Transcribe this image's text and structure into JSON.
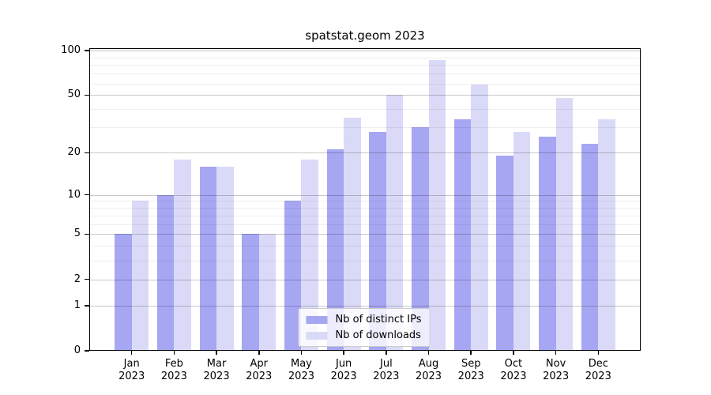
{
  "title": "spatstat.geom 2023",
  "chart_data": {
    "type": "bar",
    "title": "spatstat.geom 2023",
    "x_categories": [
      "Jan",
      "Feb",
      "Mar",
      "Apr",
      "May",
      "Jun",
      "Jul",
      "Aug",
      "Sep",
      "Oct",
      "Nov",
      "Dec"
    ],
    "x_year": "2023",
    "series": [
      {
        "name": "Nb of distinct IPs",
        "color": "#a6a6f3",
        "values": [
          5,
          10,
          16,
          5,
          9,
          21,
          28,
          30,
          34,
          19,
          26,
          23
        ]
      },
      {
        "name": "Nb of downloads",
        "color": "#dadaf8",
        "values": [
          9,
          18,
          16,
          5,
          18,
          35,
          50,
          86,
          59,
          28,
          48,
          34
        ]
      }
    ],
    "y_scale": "log1p",
    "ylim": [
      0,
      105
    ],
    "y_axis_ticks": [
      0,
      1,
      2,
      5,
      10,
      20,
      50,
      100
    ],
    "y_minor_gridlines": [
      3,
      4,
      6,
      7,
      8,
      9,
      30,
      40,
      60,
      70,
      80,
      90
    ],
    "grid": true,
    "legend": {
      "position": "lower center",
      "entries": [
        "Nb of distinct IPs",
        "Nb of downloads"
      ]
    }
  }
}
